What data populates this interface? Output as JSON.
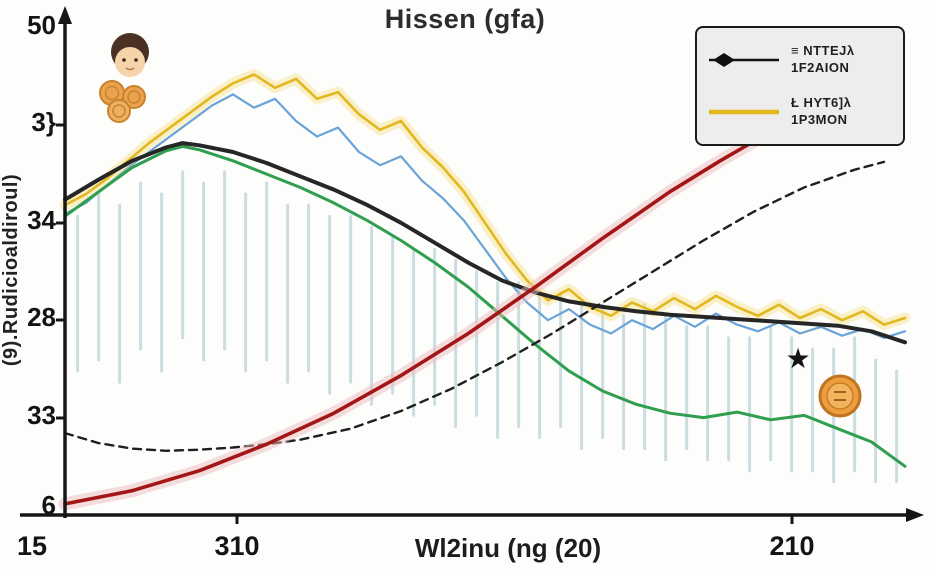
{
  "title": "Hissen (gfa)",
  "chart_data": {
    "type": "line",
    "title": "Hissen (gfa)",
    "xlabel": "Wl2inu (ng (20)",
    "ylabel": "(9).Rudicioaldiroul)",
    "x_ticks": [
      "15",
      "310",
      "210"
    ],
    "y_ticks": [
      "50",
      "3}",
      "34",
      "28",
      "33",
      "6"
    ],
    "xlim": [
      0,
      100
    ],
    "ylim": [
      6,
      50
    ],
    "grid": false,
    "legend_position": "top-right",
    "band_style": {
      "color": "#9dbfc6",
      "opacity": 0.5
    },
    "bands": [
      [
        1.5,
        19,
        33
      ],
      [
        4,
        20,
        35
      ],
      [
        6.5,
        18,
        34
      ],
      [
        9,
        21,
        36
      ],
      [
        11.5,
        19,
        35
      ],
      [
        14,
        22,
        37
      ],
      [
        16.5,
        20,
        36
      ],
      [
        19,
        21,
        37
      ],
      [
        21.5,
        19,
        35
      ],
      [
        24,
        20,
        36
      ],
      [
        26.5,
        18,
        34
      ],
      [
        29,
        19,
        34
      ],
      [
        31.5,
        17,
        33
      ],
      [
        34,
        18,
        33
      ],
      [
        36.5,
        16,
        32
      ],
      [
        39,
        17,
        31
      ],
      [
        41.5,
        15,
        30
      ],
      [
        44,
        16,
        30
      ],
      [
        46.5,
        14,
        29
      ],
      [
        49,
        15,
        28
      ],
      [
        51.5,
        13,
        27
      ],
      [
        54,
        14,
        27
      ],
      [
        56.5,
        13,
        26
      ],
      [
        59,
        14,
        26
      ],
      [
        61.5,
        12,
        25
      ],
      [
        64,
        13,
        25
      ],
      [
        66.5,
        12,
        24
      ],
      [
        69,
        12,
        25
      ],
      [
        71.5,
        11,
        24
      ],
      [
        74,
        12,
        23
      ],
      [
        76.5,
        11,
        23
      ],
      [
        79,
        11,
        22
      ],
      [
        81.5,
        10,
        22
      ],
      [
        84,
        11,
        23
      ],
      [
        86.5,
        10,
        22
      ],
      [
        89,
        10,
        21
      ],
      [
        91.5,
        9,
        21
      ],
      [
        94,
        10,
        22
      ],
      [
        96.5,
        9,
        20
      ],
      [
        99,
        9,
        19
      ]
    ],
    "series": [
      {
        "name": "blue-jagged",
        "color": "#6aa3d8",
        "width": 2.2,
        "points": [
          [
            0,
            33.2
          ],
          [
            2.5,
            34.2
          ],
          [
            5,
            35.8
          ],
          [
            7.5,
            37.4
          ],
          [
            10,
            38.8
          ],
          [
            12.5,
            40.2
          ],
          [
            15,
            41.6
          ],
          [
            17.5,
            43.0
          ],
          [
            20,
            44.0
          ],
          [
            22.5,
            42.8
          ],
          [
            25,
            43.6
          ],
          [
            27.5,
            41.6
          ],
          [
            30,
            40.2
          ],
          [
            32.5,
            41.0
          ],
          [
            35,
            38.8
          ],
          [
            37.5,
            37.6
          ],
          [
            40,
            38.4
          ],
          [
            42.5,
            36.2
          ],
          [
            45,
            34.6
          ],
          [
            47.5,
            32.6
          ],
          [
            50,
            30.0
          ],
          [
            52.5,
            27.4
          ],
          [
            55,
            25.2
          ],
          [
            57.5,
            23.6
          ],
          [
            60,
            24.6
          ],
          [
            62.5,
            23.2
          ],
          [
            65,
            22.4
          ],
          [
            67.5,
            23.6
          ],
          [
            70,
            22.8
          ],
          [
            72.5,
            24.0
          ],
          [
            75,
            23.0
          ],
          [
            77.5,
            24.2
          ],
          [
            80,
            23.2
          ],
          [
            82.5,
            22.6
          ],
          [
            85,
            23.4
          ],
          [
            87.5,
            22.4
          ],
          [
            90,
            23.0
          ],
          [
            92.5,
            22.2
          ],
          [
            95,
            22.8
          ],
          [
            97.5,
            22.0
          ],
          [
            100,
            22.6
          ]
        ]
      },
      {
        "name": "yellow-jagged",
        "color": "#e3b71f",
        "width": 2.6,
        "halo": {
          "color": "#f6dc7a",
          "width": 11,
          "opacity": 0.4
        },
        "points": [
          [
            0,
            34.0
          ],
          [
            2.5,
            35.0
          ],
          [
            5,
            36.4
          ],
          [
            7.5,
            38.0
          ],
          [
            10,
            39.6
          ],
          [
            12.5,
            41.0
          ],
          [
            15,
            42.4
          ],
          [
            17.5,
            43.8
          ],
          [
            20,
            45.0
          ],
          [
            22.5,
            45.8
          ],
          [
            25,
            44.6
          ],
          [
            27.5,
            45.4
          ],
          [
            30,
            43.6
          ],
          [
            32.5,
            44.2
          ],
          [
            35,
            42.2
          ],
          [
            37.5,
            40.8
          ],
          [
            40,
            41.6
          ],
          [
            42.5,
            39.2
          ],
          [
            45,
            37.4
          ],
          [
            47.5,
            35.2
          ],
          [
            50,
            32.4
          ],
          [
            52.5,
            29.6
          ],
          [
            55,
            27.2
          ],
          [
            57.5,
            25.4
          ],
          [
            60,
            26.4
          ],
          [
            62.5,
            24.8
          ],
          [
            65,
            24.0
          ],
          [
            67.5,
            25.2
          ],
          [
            70,
            24.4
          ],
          [
            72.5,
            25.6
          ],
          [
            75,
            24.6
          ],
          [
            77.5,
            25.8
          ],
          [
            80,
            24.8
          ],
          [
            82.5,
            24.0
          ],
          [
            85,
            25.0
          ],
          [
            87.5,
            23.8
          ],
          [
            90,
            24.6
          ],
          [
            92.5,
            23.6
          ],
          [
            95,
            24.4
          ],
          [
            97.5,
            23.2
          ],
          [
            100,
            23.8
          ]
        ]
      },
      {
        "name": "green-falling",
        "color": "#2f9e4f",
        "width": 3,
        "points": [
          [
            0,
            33.0
          ],
          [
            4,
            35.2
          ],
          [
            8,
            37.4
          ],
          [
            12,
            38.9
          ],
          [
            14,
            39.3
          ],
          [
            16,
            39.0
          ],
          [
            20,
            38.0
          ],
          [
            24,
            36.8
          ],
          [
            28,
            35.6
          ],
          [
            32,
            34.2
          ],
          [
            36,
            32.6
          ],
          [
            40,
            30.8
          ],
          [
            44,
            28.8
          ],
          [
            48,
            26.6
          ],
          [
            52,
            24.0
          ],
          [
            56,
            21.4
          ],
          [
            60,
            19.0
          ],
          [
            64,
            17.2
          ],
          [
            68,
            16.0
          ],
          [
            72,
            15.2
          ],
          [
            76,
            14.8
          ],
          [
            80,
            15.3
          ],
          [
            84,
            14.6
          ],
          [
            88,
            15.0
          ],
          [
            92,
            13.8
          ],
          [
            96,
            12.6
          ],
          [
            100,
            10.4
          ]
        ]
      },
      {
        "name": "black-main",
        "color": "#262626",
        "width": 4,
        "points": [
          [
            0,
            34.5
          ],
          [
            4,
            36.3
          ],
          [
            8,
            38.0
          ],
          [
            12,
            39.2
          ],
          [
            14,
            39.6
          ],
          [
            16,
            39.4
          ],
          [
            20,
            38.8
          ],
          [
            24,
            37.8
          ],
          [
            28,
            36.6
          ],
          [
            32,
            35.4
          ],
          [
            36,
            34.0
          ],
          [
            40,
            32.4
          ],
          [
            44,
            30.6
          ],
          [
            48,
            28.8
          ],
          [
            52,
            27.2
          ],
          [
            56,
            26.1
          ],
          [
            60,
            25.3
          ],
          [
            64,
            24.8
          ],
          [
            68,
            24.4
          ],
          [
            72,
            24.1
          ],
          [
            76,
            23.9
          ],
          [
            80,
            23.7
          ],
          [
            84,
            23.5
          ],
          [
            88,
            23.3
          ],
          [
            92,
            23.1
          ],
          [
            96,
            22.6
          ],
          [
            100,
            21.6
          ]
        ]
      },
      {
        "name": "dashed-trend",
        "color": "#1f1f1f",
        "width": 2.4,
        "dash": "8 6",
        "points": [
          [
            0,
            13.4
          ],
          [
            4,
            12.5
          ],
          [
            8,
            12.0
          ],
          [
            12,
            11.8
          ],
          [
            16,
            11.9
          ],
          [
            20,
            12.1
          ],
          [
            24,
            12.4
          ],
          [
            28,
            12.8
          ],
          [
            34,
            13.8
          ],
          [
            40,
            15.4
          ],
          [
            46,
            17.4
          ],
          [
            52,
            19.8
          ],
          [
            58,
            22.4
          ],
          [
            64,
            25.2
          ],
          [
            70,
            28.0
          ],
          [
            76,
            30.8
          ],
          [
            82,
            33.4
          ],
          [
            88,
            35.6
          ],
          [
            94,
            37.2
          ],
          [
            97.5,
            37.9
          ]
        ]
      },
      {
        "name": "red-rising",
        "color": "#a31616",
        "width": 3.6,
        "halo": {
          "color": "#eebcbc",
          "width": 13,
          "opacity": 0.5
        },
        "points": [
          [
            0,
            7.0
          ],
          [
            8,
            8.2
          ],
          [
            16,
            10.0
          ],
          [
            24,
            12.4
          ],
          [
            32,
            15.2
          ],
          [
            40,
            18.6
          ],
          [
            48,
            22.4
          ],
          [
            56,
            26.6
          ],
          [
            64,
            31.0
          ],
          [
            72,
            35.2
          ],
          [
            78,
            38.0
          ],
          [
            83,
            40.2
          ]
        ]
      }
    ],
    "legend": {
      "entries": [
        {
          "symbol": "black-diamond-line",
          "line1": "≡ NTTEJλ",
          "line2": "1F2AION"
        },
        {
          "symbol": "yellow-line",
          "line1": "Ł HYT6]λ",
          "line2": "1P3MON"
        }
      ]
    }
  },
  "icons": {
    "person": "person-coins-icon",
    "coin": "coin-icon",
    "star_glyph": "★"
  }
}
